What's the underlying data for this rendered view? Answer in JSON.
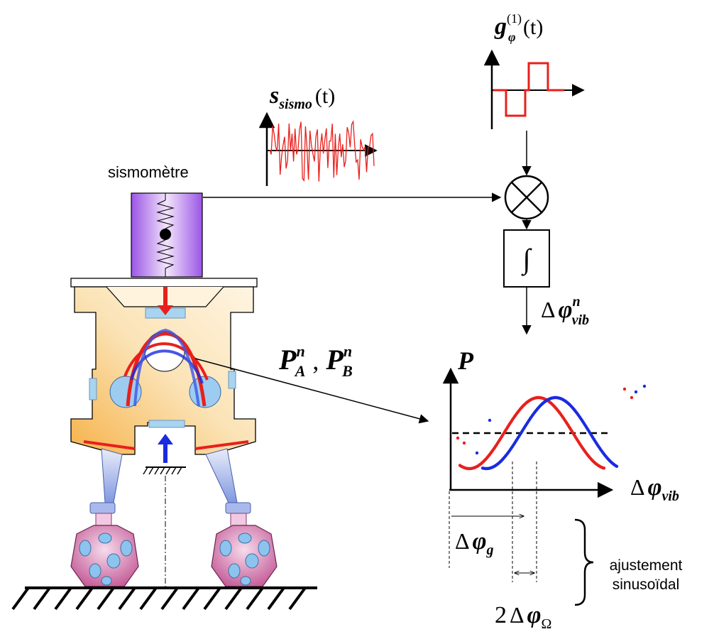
{
  "labels": {
    "sismometre": "sismomètre",
    "ajustement_line1": "ajustement",
    "ajustement_line2": "sinusoïdal",
    "integrator_symbol": "∫",
    "s_main": "s",
    "s_sub": "sismo",
    "s_arg": "(t)",
    "g_main": "g",
    "g_sub": "φ",
    "g_sup": "(1)",
    "g_arg": "(t)",
    "dphi_vib_n_delta": "Δ",
    "dphi_vib_n_phi": "φ",
    "dphi_vib_n_sup": "n",
    "dphi_vib_n_sub": "vib",
    "PA": "P",
    "PA_sup": "n",
    "PA_sub": "A",
    "PB": "P",
    "PB_sup": "n",
    "PB_sub": "B",
    "comma": ",",
    "plot_y_label": "P",
    "plot_x_delta": "Δ",
    "plot_x_phi": "φ",
    "plot_x_sub": "vib",
    "dphi_g_delta": "Δ",
    "dphi_g_phi": "φ",
    "dphi_g_sub": "g",
    "two_dphi_omega_2": "2",
    "two_dphi_omega_delta": "Δ",
    "two_dphi_omega_phi": "φ",
    "two_dphi_omega_sub": "Ω"
  },
  "colors": {
    "signal_red": "#e8201c",
    "signal_blue": "#1a2be0",
    "seismometer_purple": "#b06ee0",
    "platform_orange": "#f9d7a0",
    "foot_pink": "#e6a0cc",
    "foot_holes": "#8cc4ee",
    "leg_blue": "#9fb4e8"
  }
}
